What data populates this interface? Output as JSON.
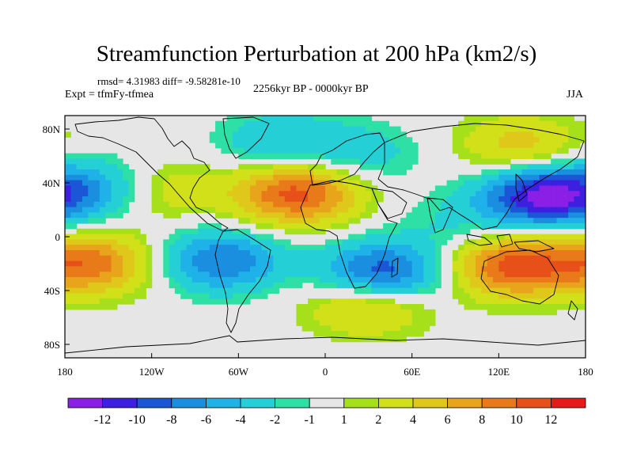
{
  "title": "Streamfunction Perturbation at 200 hPa (km2/s)",
  "stats": "rmsd= 4.31983 diff= -9.58281e-10",
  "experiment": "Expt = tfmFy-tfmea",
  "period": "2256kyr BP - 0000kyr BP",
  "season": "JJA",
  "map": {
    "projection": "cylindrical equidistant",
    "lon_range": [
      -180,
      180
    ],
    "lat_range": [
      -90,
      90
    ],
    "x_ticks": [
      {
        "value": -180,
        "label": "180"
      },
      {
        "value": -120,
        "label": "120W"
      },
      {
        "value": -60,
        "label": "60W"
      },
      {
        "value": 0,
        "label": "0"
      },
      {
        "value": 60,
        "label": "60E"
      },
      {
        "value": 120,
        "label": "120E"
      },
      {
        "value": 180,
        "label": "180"
      }
    ],
    "y_ticks": [
      {
        "value": 80,
        "label": "80N"
      },
      {
        "value": 40,
        "label": "40N"
      },
      {
        "value": 0,
        "label": "0"
      },
      {
        "value": -40,
        "label": "40S"
      },
      {
        "value": -80,
        "label": "80S"
      }
    ],
    "field_features": [
      {
        "lon": 152,
        "lat": 30,
        "value": -13
      },
      {
        "lon": 40,
        "lat": -27,
        "value": -10
      },
      {
        "lon": -72,
        "lat": -18,
        "value": -8
      },
      {
        "lon": -150,
        "lat": 36,
        "value": -6
      },
      {
        "lon": -32,
        "lat": 70,
        "value": -4
      },
      {
        "lon": 25,
        "lat": 62,
        "value": -3
      },
      {
        "lon": 90,
        "lat": 10,
        "value": -2
      },
      {
        "lon": -20,
        "lat": 32,
        "value": 11
      },
      {
        "lon": 130,
        "lat": -22,
        "value": 11
      },
      {
        "lon": -162,
        "lat": -20,
        "value": 9
      },
      {
        "lon": 135,
        "lat": 68,
        "value": 5
      },
      {
        "lon": -120,
        "lat": 35,
        "value": 5
      },
      {
        "lon": 30,
        "lat": -50,
        "value": 6
      }
    ]
  },
  "colorbar": {
    "colors": [
      "#8a1fe6",
      "#3d1fe0",
      "#1a56d6",
      "#1a8fe0",
      "#1fb2e8",
      "#24cfd6",
      "#2ee0a6",
      "#e6e6e6",
      "#a6e01a",
      "#d2e01a",
      "#e0c81a",
      "#e8a41a",
      "#e87a1a",
      "#e8501a",
      "#e61a1a"
    ],
    "labels": [
      "-12",
      "-10",
      "-8",
      "-6",
      "-4",
      "-2",
      "-1",
      "1",
      "2",
      "4",
      "6",
      "8",
      "10",
      "12"
    ]
  }
}
